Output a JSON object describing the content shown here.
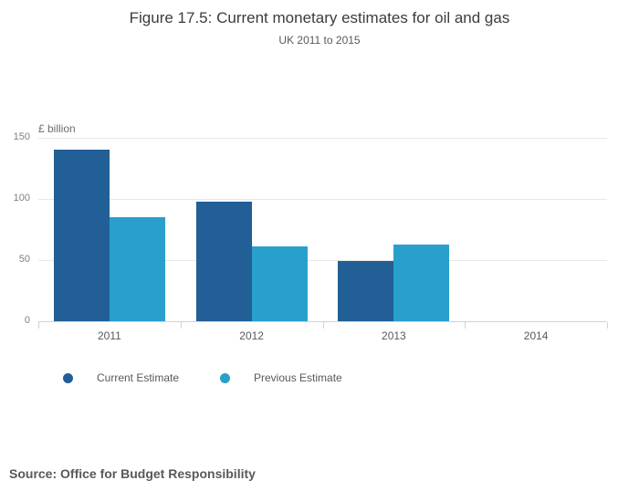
{
  "chart_data": {
    "type": "bar",
    "title": "Figure 17.5: Current monetary estimates for oil and gas",
    "subtitle": "UK 2011 to 2015",
    "ylabel": "£ billion",
    "xlabel": "",
    "categories": [
      "2011",
      "2012",
      "2013",
      "2014"
    ],
    "series": [
      {
        "name": "Current Estimate",
        "color": "#215f96",
        "values": [
          140,
          98,
          49,
          null
        ]
      },
      {
        "name": "Previous Estimate",
        "color": "#29a0cc",
        "values": [
          85,
          61,
          63,
          null
        ]
      }
    ],
    "ylim": [
      0,
      150
    ],
    "yticks": [
      0,
      50,
      100,
      150
    ],
    "grid": true,
    "legend_position": "bottom"
  },
  "footer": {
    "source": "Source: Office for Budget Responsibility"
  },
  "colors": {
    "axis": "#c9d5df",
    "grid": "#e8e8e8",
    "title_text": "#3c3c3c",
    "label_text": "#595959",
    "tick_text": "#7f7f7f"
  }
}
